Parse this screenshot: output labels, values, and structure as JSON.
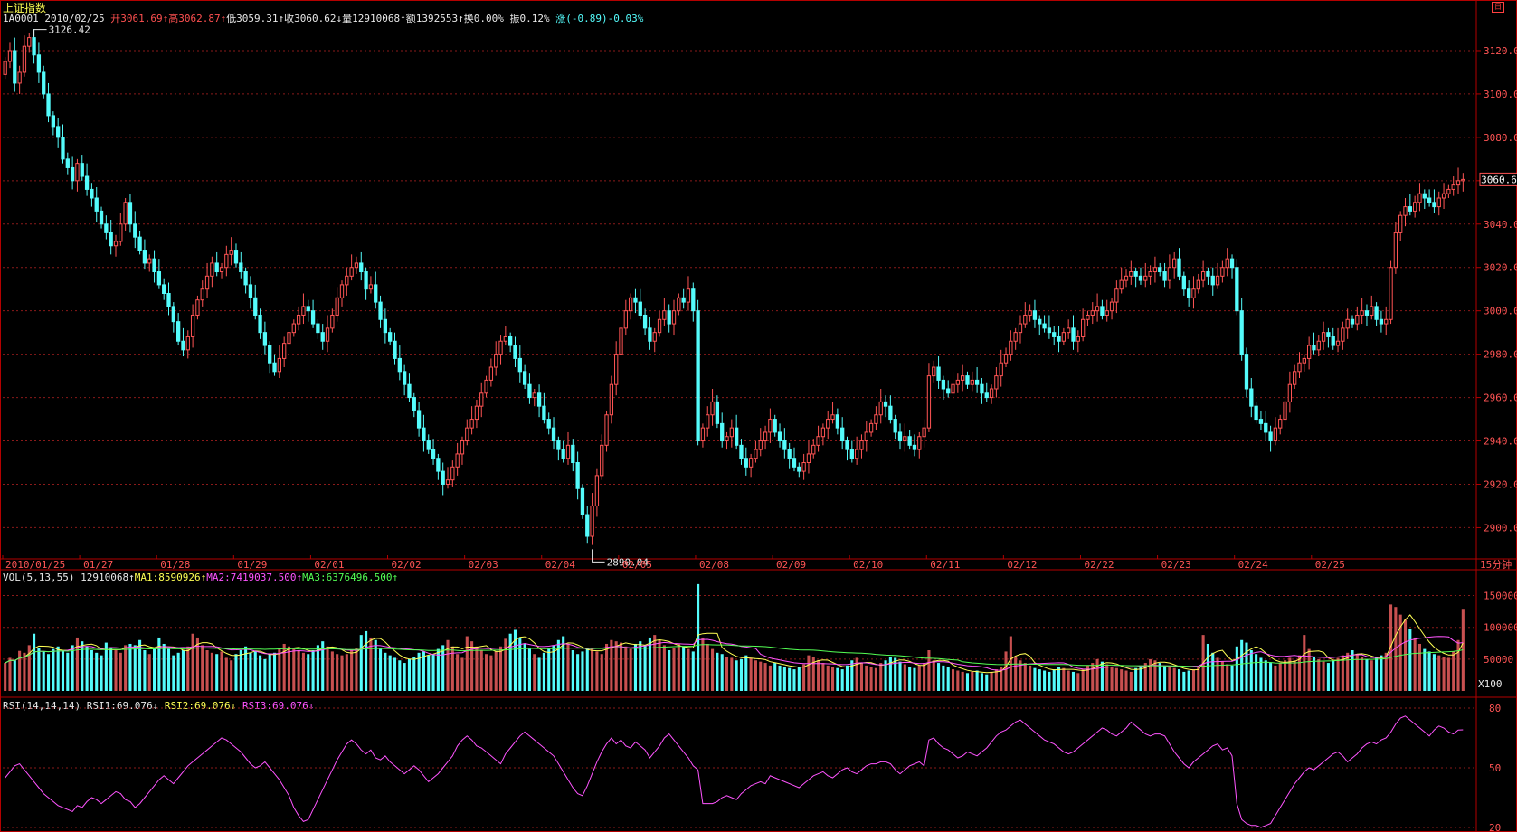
{
  "header": {
    "title": "上证指数",
    "window_icon": "restore-icon",
    "window_icon_glyph": "日",
    "quote": {
      "code_date": "1A0001 2010/02/25",
      "open": "开3061.69↑",
      "high": "高3062.87↑",
      "low": "低3059.31↑",
      "close": "收3060.62↓",
      "volume": "量12910068↑",
      "amount": "额1392553↑",
      "turnover": "换0.00%",
      "amplitude": "振0.12%",
      "change": "涨(-0.89)-0.03%"
    }
  },
  "price_panel": {
    "y_ticks": [
      "3120.0",
      "3100.0",
      "3080.0",
      "3060.0",
      "3040.0",
      "3020.0",
      "3000.0",
      "2980.0",
      "2960.0",
      "2940.0",
      "2920.0",
      "2900.0"
    ],
    "tick_values": [
      3120,
      3100,
      3080,
      3060,
      3040,
      3020,
      3000,
      2980,
      2960,
      2940,
      2920,
      2900
    ],
    "ylim": [
      2886,
      3130
    ],
    "current_price_label": "3060.6",
    "current_price": 3060.6,
    "high_marker": "3126.42",
    "high_value": 3126.42,
    "low_marker": "2890.04",
    "low_value": 2890.04
  },
  "x_axis": {
    "date_labels": [
      "2010/01/25",
      "01/27",
      "01/28",
      "01/29",
      "02/01",
      "02/02",
      "02/03",
      "02/04",
      "02/05",
      "02/08",
      "02/09",
      "02/10",
      "02/11",
      "02/12",
      "02/22",
      "02/23",
      "02/24",
      "02/25"
    ],
    "period_label": "15分钟"
  },
  "volume_panel": {
    "legend": {
      "name": "VOL(5,13,55)",
      "value": "12910068↑",
      "ma1": "MA1:8590926↑",
      "ma2": "MA2:7419037.500↑",
      "ma3": "MA3:6376496.500↑"
    },
    "y_ticks": [
      "150000",
      "100000",
      "50000"
    ],
    "tick_values": [
      150000,
      100000,
      50000
    ],
    "ylim": [
      0,
      165000
    ],
    "unit_label": "X100"
  },
  "rsi_panel": {
    "legend": {
      "name": "RSI(14,14,14)",
      "rsi1": "RSI1:69.076↓",
      "rsi2": "RSI2:69.076↓",
      "rsi3": "RSI3:69.076↓"
    },
    "y_ticks": [
      "80",
      "50",
      "20"
    ],
    "tick_values": [
      80,
      50,
      20
    ],
    "ylim": [
      20,
      80
    ]
  },
  "chart_data": {
    "type": "candlestick",
    "interval": "15分钟",
    "bars_per_day": 16,
    "days": [
      "2010/01/25",
      "01/27",
      "01/28",
      "01/29",
      "02/01",
      "02/02",
      "02/03",
      "02/04",
      "02/05",
      "02/08",
      "02/09",
      "02/10",
      "02/11",
      "02/12",
      "02/22",
      "02/23",
      "02/24",
      "02/25"
    ],
    "close": [
      3115,
      3120,
      3105,
      3110,
      3122,
      3126,
      3118,
      3110,
      3100,
      3090,
      3085,
      3080,
      3070,
      3066,
      3060,
      3068,
      3062,
      3056,
      3052,
      3046,
      3040,
      3036,
      3030,
      3032,
      3040,
      3050,
      3040,
      3034,
      3028,
      3022,
      3024,
      3018,
      3012,
      3008,
      3002,
      2995,
      2986,
      2982,
      2988,
      2998,
      3005,
      3010,
      3016,
      3022,
      3018,
      3020,
      3026,
      3028,
      3022,
      3018,
      3012,
      3006,
      2998,
      2990,
      2984,
      2976,
      2972,
      2978,
      2985,
      2990,
      2994,
      2998,
      3002,
      3000,
      2994,
      2990,
      2986,
      2992,
      2998,
      3006,
      3012,
      3016,
      3020,
      3022,
      3018,
      3010,
      3012,
      3004,
      2996,
      2990,
      2986,
      2978,
      2972,
      2966,
      2960,
      2954,
      2946,
      2940,
      2936,
      2932,
      2926,
      2920,
      2922,
      2928,
      2934,
      2940,
      2946,
      2950,
      2956,
      2962,
      2968,
      2974,
      2980,
      2986,
      2988,
      2984,
      2978,
      2972,
      2966,
      2960,
      2962,
      2956,
      2950,
      2946,
      2940,
      2936,
      2932,
      2938,
      2930,
      2918,
      2906,
      2896,
      2910,
      2924,
      2938,
      2952,
      2966,
      2980,
      2992,
      3000,
      3006,
      3004,
      2998,
      2992,
      2986,
      2990,
      2996,
      3000,
      2994,
      3000,
      3006,
      3004,
      3010,
      3000,
      2940,
      2946,
      2952,
      2958,
      2948,
      2940,
      2942,
      2946,
      2938,
      2932,
      2928,
      2932,
      2936,
      2940,
      2944,
      2950,
      2944,
      2940,
      2936,
      2932,
      2928,
      2926,
      2930,
      2934,
      2938,
      2942,
      2946,
      2950,
      2952,
      2946,
      2940,
      2936,
      2932,
      2936,
      2940,
      2944,
      2948,
      2952,
      2958,
      2956,
      2950,
      2944,
      2940,
      2942,
      2938,
      2936,
      2942,
      2946,
      2970,
      2974,
      2968,
      2964,
      2962,
      2966,
      2968,
      2970,
      2966,
      2968,
      2966,
      2962,
      2960,
      2964,
      2970,
      2976,
      2980,
      2986,
      2990,
      2994,
      2998,
      3000,
      2996,
      2994,
      2992,
      2990,
      2988,
      2986,
      2990,
      2992,
      2986,
      2988,
      2996,
      2998,
      3000,
      3002,
      2998,
      3000,
      3004,
      3010,
      3014,
      3016,
      3018,
      3016,
      3014,
      3016,
      3018,
      3020,
      3018,
      3014,
      3020,
      3024,
      3016,
      3010,
      3006,
      3010,
      3014,
      3018,
      3016,
      3012,
      3016,
      3020,
      3024,
      3020,
      3000,
      2980,
      2964,
      2956,
      2950,
      2948,
      2944,
      2940,
      2946,
      2950,
      2958,
      2966,
      2972,
      2976,
      2978,
      2984,
      2982,
      2986,
      2990,
      2988,
      2984,
      2986,
      2992,
      2996,
      2994,
      2998,
      3000,
      2998,
      3002,
      2996,
      2994,
      2996,
      3020,
      3036,
      3044,
      3048,
      3046,
      3050,
      3054,
      3052,
      3050,
      3048,
      3052,
      3054,
      3056,
      3058,
      3060,
      3060.6
    ],
    "volume": [
      44000,
      52000,
      48000,
      63000,
      60000,
      72000,
      90000,
      68000,
      62000,
      58000,
      66000,
      70000,
      64000,
      60000,
      72000,
      84000,
      78000,
      70000,
      64000,
      60000,
      56000,
      76000,
      68000,
      64000,
      60000,
      72000,
      74000,
      72000,
      80000,
      64000,
      58000,
      66000,
      84000,
      74000,
      66000,
      56000,
      60000,
      64000,
      70000,
      90000,
      84000,
      72000,
      64000,
      60000,
      58000,
      62000,
      52000,
      48000,
      58000,
      64000,
      70000,
      60000,
      62000,
      56000,
      50000,
      58000,
      60000,
      68000,
      74000,
      70000,
      66000,
      64000,
      60000,
      58000,
      64000,
      72000,
      78000,
      70000,
      62000,
      58000,
      56000,
      58000,
      64000,
      68000,
      88000,
      94000,
      84000,
      80000,
      66000,
      60000,
      56000,
      52000,
      48000,
      44000,
      50000,
      54000,
      60000,
      62000,
      56000,
      58000,
      66000,
      72000,
      80000,
      70000,
      58000,
      52000,
      86000,
      78000,
      70000,
      64000,
      58000,
      56000,
      62000,
      70000,
      82000,
      90000,
      96000,
      84000,
      74000,
      66000,
      58000,
      52000,
      60000,
      66000,
      72000,
      80000,
      86000,
      74000,
      64000,
      58000,
      62000,
      68000,
      66000,
      62000,
      58000,
      74000,
      80000,
      78000,
      76000,
      70000,
      66000,
      74000,
      78000,
      72000,
      84000,
      88000,
      80000,
      72000,
      64000,
      68000,
      74000,
      70000,
      66000,
      62000,
      168000,
      84000,
      74000,
      66000,
      60000,
      58000,
      54000,
      52000,
      48000,
      50000,
      56000,
      52000,
      48000,
      46000,
      44000,
      40000,
      44000,
      40000,
      38000,
      36000,
      34000,
      38000,
      42000,
      56000,
      54000,
      48000,
      44000,
      40000,
      38000,
      36000,
      34000,
      40000,
      48000,
      52000,
      44000,
      40000,
      38000,
      36000,
      44000,
      48000,
      54000,
      52000,
      46000,
      42000,
      38000,
      36000,
      40000,
      44000,
      64000,
      48000,
      44000,
      40000,
      38000,
      34000,
      32000,
      30000,
      28000,
      30000,
      32000,
      28000,
      26000,
      30000,
      34000,
      38000,
      62000,
      86000,
      54000,
      48000,
      44000,
      40000,
      36000,
      34000,
      32000,
      30000,
      34000,
      38000,
      36000,
      32000,
      30000,
      28000,
      34000,
      40000,
      44000,
      50000,
      46000,
      42000,
      38000,
      36000,
      34000,
      32000,
      30000,
      36000,
      40000,
      44000,
      50000,
      48000,
      44000,
      40000,
      38000,
      36000,
      34000,
      30000,
      32000,
      34000,
      38000,
      88000,
      74000,
      60000,
      52000,
      46000,
      42000,
      40000,
      70000,
      80000,
      76000,
      64000,
      58000,
      52000,
      48000,
      44000,
      40000,
      44000,
      48000,
      52000,
      48000,
      56000,
      88000,
      66000,
      54000,
      50000,
      46000,
      44000,
      48000,
      52000,
      56000,
      60000,
      64000,
      58000,
      54000,
      50000,
      48000,
      52000,
      56000,
      60000,
      136000,
      132000,
      120000,
      112000,
      98000,
      84000,
      74000,
      66000,
      62000,
      58000,
      56000,
      54000,
      52000,
      62000,
      80000,
      129100
    ],
    "rsi": [
      45,
      48,
      51,
      52,
      49,
      46,
      43,
      40,
      37,
      35,
      33,
      31,
      30,
      29,
      28,
      31,
      30,
      33,
      35,
      34,
      32,
      34,
      36,
      38,
      37,
      34,
      33,
      30,
      32,
      35,
      38,
      41,
      44,
      46,
      44,
      42,
      45,
      48,
      51,
      53,
      55,
      57,
      59,
      61,
      63,
      65,
      64,
      62,
      60,
      58,
      55,
      52,
      50,
      51,
      53,
      50,
      47,
      44,
      40,
      36,
      30,
      26,
      23,
      24,
      29,
      34,
      39,
      44,
      49,
      54,
      58,
      62,
      64,
      62,
      59,
      57,
      59,
      55,
      54,
      56,
      53,
      51,
      49,
      47,
      49,
      51,
      49,
      46,
      43,
      45,
      47,
      50,
      53,
      56,
      61,
      64,
      66,
      64,
      61,
      60,
      58,
      56,
      54,
      52,
      57,
      60,
      63,
      66,
      68,
      66,
      64,
      62,
      60,
      58,
      56,
      52,
      48,
      44,
      40,
      37,
      36,
      41,
      47,
      53,
      58,
      62,
      65,
      62,
      64,
      61,
      60,
      63,
      61,
      59,
      55,
      58,
      61,
      65,
      67,
      64,
      61,
      58,
      55,
      51,
      49,
      32,
      32,
      32,
      33,
      35,
      36,
      35,
      34,
      37,
      39,
      41,
      42,
      43,
      42,
      46,
      45,
      44,
      43,
      42,
      41,
      40,
      42,
      44,
      46,
      47,
      48,
      46,
      45,
      47,
      49,
      50,
      48,
      47,
      49,
      51,
      52,
      52,
      53,
      53,
      52,
      49,
      47,
      49,
      51,
      52,
      53,
      51,
      64,
      65,
      62,
      60,
      59,
      57,
      55,
      56,
      58,
      57,
      56,
      58,
      60,
      63,
      66,
      68,
      69,
      71,
      73,
      74,
      72,
      70,
      68,
      66,
      64,
      63,
      62,
      60,
      58,
      57,
      58,
      60,
      62,
      64,
      66,
      68,
      70,
      69,
      67,
      66,
      68,
      70,
      73,
      71,
      69,
      67,
      66,
      67,
      67,
      66,
      62,
      58,
      55,
      52,
      50,
      53,
      55,
      57,
      59,
      61,
      62,
      59,
      60,
      56,
      32,
      24,
      22,
      21,
      21,
      20,
      21,
      22,
      26,
      30,
      34,
      38,
      42,
      45,
      48,
      50,
      49,
      51,
      53,
      55,
      57,
      58,
      56,
      53,
      55,
      57,
      60,
      62,
      63,
      62,
      64,
      65,
      68,
      72,
      75,
      76,
      74,
      72,
      70,
      68,
      66,
      69,
      71,
      70,
      68,
      67,
      69,
      69.076
    ]
  }
}
